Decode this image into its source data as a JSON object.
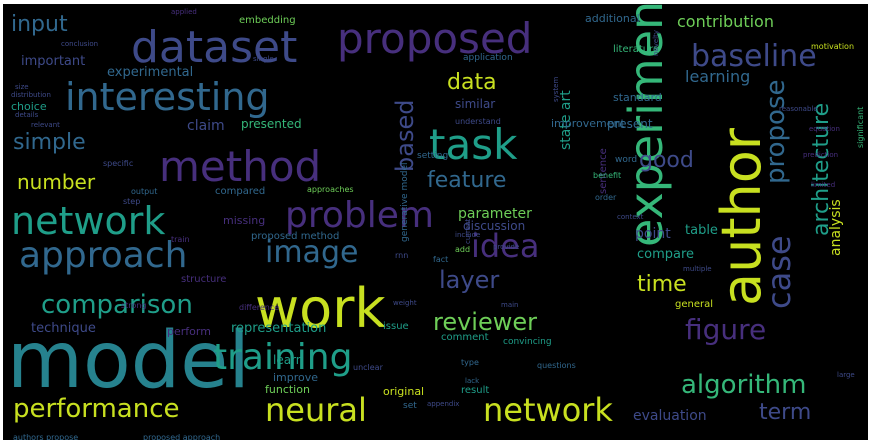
{
  "palette": {
    "purple": "#472f7d",
    "indigo": "#3e4a89",
    "blue": "#31688e",
    "teal": "#26828e",
    "green": "#1f9e89",
    "lightgreen": "#35b779",
    "lime": "#6ece58",
    "yellow": "#c8e020",
    "background": "#000000"
  },
  "words": [
    {
      "text": "model",
      "size": 78,
      "color": "teal",
      "rot": 0
    },
    {
      "text": "work",
      "size": 54,
      "color": "yellow",
      "rot": 0
    },
    {
      "text": "author",
      "size": 54,
      "color": "yellow",
      "rot": -90
    },
    {
      "text": "experiment",
      "size": 46,
      "color": "lightgreen",
      "rot": -90
    },
    {
      "text": "proposed",
      "size": 42,
      "color": "purple",
      "rot": 0
    },
    {
      "text": "dataset",
      "size": 44,
      "color": "indigo",
      "rot": 0
    },
    {
      "text": "method",
      "size": 42,
      "color": "purple",
      "rot": 0
    },
    {
      "text": "task",
      "size": 42,
      "color": "green",
      "rot": 0
    },
    {
      "text": "interesting",
      "size": 38,
      "color": "blue",
      "rot": 0
    },
    {
      "text": "network",
      "size": 38,
      "color": "green",
      "rot": 0
    },
    {
      "text": "approach",
      "size": 36,
      "color": "blue",
      "rot": 0
    },
    {
      "text": "problem",
      "size": 36,
      "color": "purple",
      "rot": 0
    },
    {
      "text": "training",
      "size": 36,
      "color": "green",
      "rot": 0
    },
    {
      "text": "neural",
      "size": 32,
      "color": "yellow",
      "rot": 0
    },
    {
      "text": "network",
      "size": 32,
      "color": "yellow",
      "rot": 0
    },
    {
      "text": "baseline",
      "size": 30,
      "color": "indigo",
      "rot": 0
    },
    {
      "text": "idea",
      "size": 32,
      "color": "purple",
      "rot": 0
    },
    {
      "text": "image",
      "size": 30,
      "color": "blue",
      "rot": 0
    },
    {
      "text": "case",
      "size": 32,
      "color": "indigo",
      "rot": -90
    },
    {
      "text": "propose",
      "size": 26,
      "color": "blue",
      "rot": -90
    },
    {
      "text": "figure",
      "size": 28,
      "color": "purple",
      "rot": 0
    },
    {
      "text": "comparison",
      "size": 26,
      "color": "green",
      "rot": 0
    },
    {
      "text": "performance",
      "size": 26,
      "color": "yellow",
      "rot": 0
    },
    {
      "text": "algorithm",
      "size": 26,
      "color": "lightgreen",
      "rot": 0
    },
    {
      "text": "architecture",
      "size": 22,
      "color": "green",
      "rot": -90
    },
    {
      "text": "reviewer",
      "size": 24,
      "color": "lime",
      "rot": 0
    },
    {
      "text": "layer",
      "size": 24,
      "color": "indigo",
      "rot": 0
    },
    {
      "text": "based",
      "size": 24,
      "color": "indigo",
      "rot": -90
    },
    {
      "text": "feature",
      "size": 22,
      "color": "blue",
      "rot": 0
    },
    {
      "text": "time",
      "size": 22,
      "color": "yellow",
      "rot": 0
    },
    {
      "text": "data",
      "size": 22,
      "color": "yellow",
      "rot": 0
    },
    {
      "text": "good",
      "size": 22,
      "color": "indigo",
      "rot": 0
    },
    {
      "text": "simple",
      "size": 22,
      "color": "blue",
      "rot": 0
    },
    {
      "text": "input",
      "size": 22,
      "color": "blue",
      "rot": 0
    },
    {
      "text": "number",
      "size": 20,
      "color": "yellow",
      "rot": 0
    },
    {
      "text": "term",
      "size": 22,
      "color": "indigo",
      "rot": 0
    },
    {
      "text": "learning",
      "size": 16,
      "color": "blue",
      "rot": 0
    },
    {
      "text": "contribution",
      "size": 16,
      "color": "lime",
      "rot": 0
    },
    {
      "text": "parameter",
      "size": 14,
      "color": "lime",
      "rot": 0
    },
    {
      "text": "state art",
      "size": 14,
      "color": "green",
      "rot": -90
    },
    {
      "text": "evaluation",
      "size": 14,
      "color": "indigo",
      "rot": 0
    },
    {
      "text": "analysis",
      "size": 14,
      "color": "yellow",
      "rot": -90
    },
    {
      "text": "point",
      "size": 14,
      "color": "indigo",
      "rot": 0
    },
    {
      "text": "compare",
      "size": 13,
      "color": "green",
      "rot": 0
    },
    {
      "text": "table",
      "size": 13,
      "color": "green",
      "rot": 0
    },
    {
      "text": "claim",
      "size": 14,
      "color": "indigo",
      "rot": 0
    },
    {
      "text": "important",
      "size": 13,
      "color": "indigo",
      "rot": 0
    },
    {
      "text": "experimental",
      "size": 13,
      "color": "blue",
      "rot": 0
    },
    {
      "text": "technique",
      "size": 13,
      "color": "indigo",
      "rot": 0
    },
    {
      "text": "representation",
      "size": 13,
      "color": "green",
      "rot": 0
    },
    {
      "text": "present",
      "size": 12,
      "color": "blue",
      "rot": 0
    },
    {
      "text": "standard",
      "size": 11,
      "color": "blue",
      "rot": 0
    },
    {
      "text": "similar",
      "size": 12,
      "color": "indigo",
      "rot": 0
    },
    {
      "text": "presented",
      "size": 12,
      "color": "lightgreen",
      "rot": 0
    },
    {
      "text": "discussion",
      "size": 12,
      "color": "indigo",
      "rot": 0
    },
    {
      "text": "improvement",
      "size": 11,
      "color": "blue",
      "rot": 0
    },
    {
      "text": "additional",
      "size": 11,
      "color": "blue",
      "rot": 0
    },
    {
      "text": "embedding",
      "size": 10,
      "color": "lime",
      "rot": 0
    },
    {
      "text": "literature",
      "size": 10,
      "color": "lightgreen",
      "rot": 0
    },
    {
      "text": "application",
      "size": 9,
      "color": "blue",
      "rot": 0
    },
    {
      "text": "missing",
      "size": 11,
      "color": "purple",
      "rot": 0
    },
    {
      "text": "compared",
      "size": 10,
      "color": "blue",
      "rot": 0
    },
    {
      "text": "proposed method",
      "size": 10,
      "color": "blue",
      "rot": 0
    },
    {
      "text": "learn",
      "size": 12,
      "color": "green",
      "rot": 0
    },
    {
      "text": "improve",
      "size": 11,
      "color": "blue",
      "rot": 0
    },
    {
      "text": "function",
      "size": 11,
      "color": "lime",
      "rot": 0
    },
    {
      "text": "original",
      "size": 11,
      "color": "yellow",
      "rot": 0
    },
    {
      "text": "result",
      "size": 10,
      "color": "green",
      "rot": 0
    },
    {
      "text": "general",
      "size": 10,
      "color": "yellow",
      "rot": 0
    },
    {
      "text": "perform",
      "size": 11,
      "color": "purple",
      "rot": 0
    },
    {
      "text": "structure",
      "size": 10,
      "color": "purple",
      "rot": 0
    },
    {
      "text": "choice",
      "size": 11,
      "color": "green",
      "rot": 0
    },
    {
      "text": "comment",
      "size": 10,
      "color": "green",
      "rot": 0
    },
    {
      "text": "issue",
      "size": 10,
      "color": "green",
      "rot": 0
    },
    {
      "text": "convincing",
      "size": 9,
      "color": "green",
      "rot": 0
    },
    {
      "text": "set",
      "size": 9,
      "color": "blue",
      "rot": 0
    },
    {
      "text": "sentence",
      "size": 10,
      "color": "purple",
      "rot": -90
    },
    {
      "text": "generative model",
      "size": 9,
      "color": "blue",
      "rot": -90
    },
    {
      "text": "word",
      "size": 9,
      "color": "blue",
      "rot": 0
    },
    {
      "text": "setting",
      "size": 9,
      "color": "blue",
      "rot": 0
    },
    {
      "text": "motivation",
      "size": 8,
      "color": "yellow",
      "rot": 0
    },
    {
      "text": "approaches",
      "size": 8,
      "color": "lime",
      "rot": 0
    },
    {
      "text": "authors propose",
      "size": 8,
      "color": "blue",
      "rot": 0
    },
    {
      "text": "proposed approach",
      "size": 8,
      "color": "blue",
      "rot": 0
    },
    {
      "text": "significant",
      "size": 8,
      "color": "lightgreen",
      "rot": -90
    },
    {
      "text": "understand",
      "size": 8,
      "color": "indigo",
      "rot": 0
    },
    {
      "text": "output",
      "size": 8,
      "color": "blue",
      "rot": 0
    },
    {
      "text": "questions",
      "size": 8,
      "color": "blue",
      "rot": 0
    },
    {
      "text": "difference",
      "size": 8,
      "color": "purple",
      "rot": 0
    },
    {
      "text": "strong",
      "size": 8,
      "color": "purple",
      "rot": 0
    },
    {
      "text": "unclear",
      "size": 8,
      "color": "indigo",
      "rot": 0
    },
    {
      "text": "specific",
      "size": 8,
      "color": "indigo",
      "rot": 0
    },
    {
      "text": "benefit",
      "size": 8,
      "color": "lightgreen",
      "rot": 0
    },
    {
      "text": "step",
      "size": 8,
      "color": "indigo",
      "rot": 0
    },
    {
      "text": "train",
      "size": 8,
      "color": "purple",
      "rot": 0
    },
    {
      "text": "order",
      "size": 8,
      "color": "blue",
      "rot": 0
    },
    {
      "text": "type",
      "size": 8,
      "color": "blue",
      "rot": 0
    },
    {
      "text": "fact",
      "size": 8,
      "color": "blue",
      "rot": 0
    },
    {
      "text": "add",
      "size": 8,
      "color": "lime",
      "rot": 0
    },
    {
      "text": "lack",
      "size": 7,
      "color": "blue",
      "rot": 0
    },
    {
      "text": "weight",
      "size": 7,
      "color": "indigo",
      "rot": 0
    },
    {
      "text": "main",
      "size": 7,
      "color": "indigo",
      "rot": 0
    },
    {
      "text": "large",
      "size": 7,
      "color": "indigo",
      "rot": 0
    },
    {
      "text": "multiple",
      "size": 7,
      "color": "indigo",
      "rot": 0
    },
    {
      "text": "context",
      "size": 7,
      "color": "indigo",
      "rot": 0
    },
    {
      "text": "conclusion",
      "size": 7,
      "color": "indigo",
      "rot": 0
    },
    {
      "text": "single",
      "size": 7,
      "color": "indigo",
      "rot": 0
    },
    {
      "text": "system",
      "size": 7,
      "color": "indigo",
      "rot": -90
    },
    {
      "text": "novelty",
      "size": 7,
      "color": "indigo",
      "rot": -90
    },
    {
      "text": "equation",
      "size": 7,
      "color": "purple",
      "rot": 0
    },
    {
      "text": "prediction",
      "size": 7,
      "color": "purple",
      "rot": 0
    },
    {
      "text": "distribution",
      "size": 7,
      "color": "indigo",
      "rot": 0
    },
    {
      "text": "relevant",
      "size": 7,
      "color": "indigo",
      "rot": 0
    },
    {
      "text": "details",
      "size": 7,
      "color": "indigo",
      "rot": 0
    },
    {
      "text": "size",
      "size": 7,
      "color": "indigo",
      "rot": 0
    },
    {
      "text": "current",
      "size": 7,
      "color": "indigo",
      "rot": -90
    },
    {
      "text": "include",
      "size": 7,
      "color": "indigo",
      "rot": 0
    },
    {
      "text": "provide",
      "size": 7,
      "color": "indigo",
      "rot": 0
    },
    {
      "text": "applied",
      "size": 7,
      "color": "purple",
      "rot": 0
    },
    {
      "text": "appendix",
      "size": 7,
      "color": "indigo",
      "rot": 0
    },
    {
      "text": "rnn",
      "size": 8,
      "color": "indigo",
      "rot": 0
    },
    {
      "text": "limited",
      "size": 7,
      "color": "purple",
      "rot": 0
    },
    {
      "text": "reasonable",
      "size": 7,
      "color": "indigo",
      "rot": 0
    }
  ]
}
